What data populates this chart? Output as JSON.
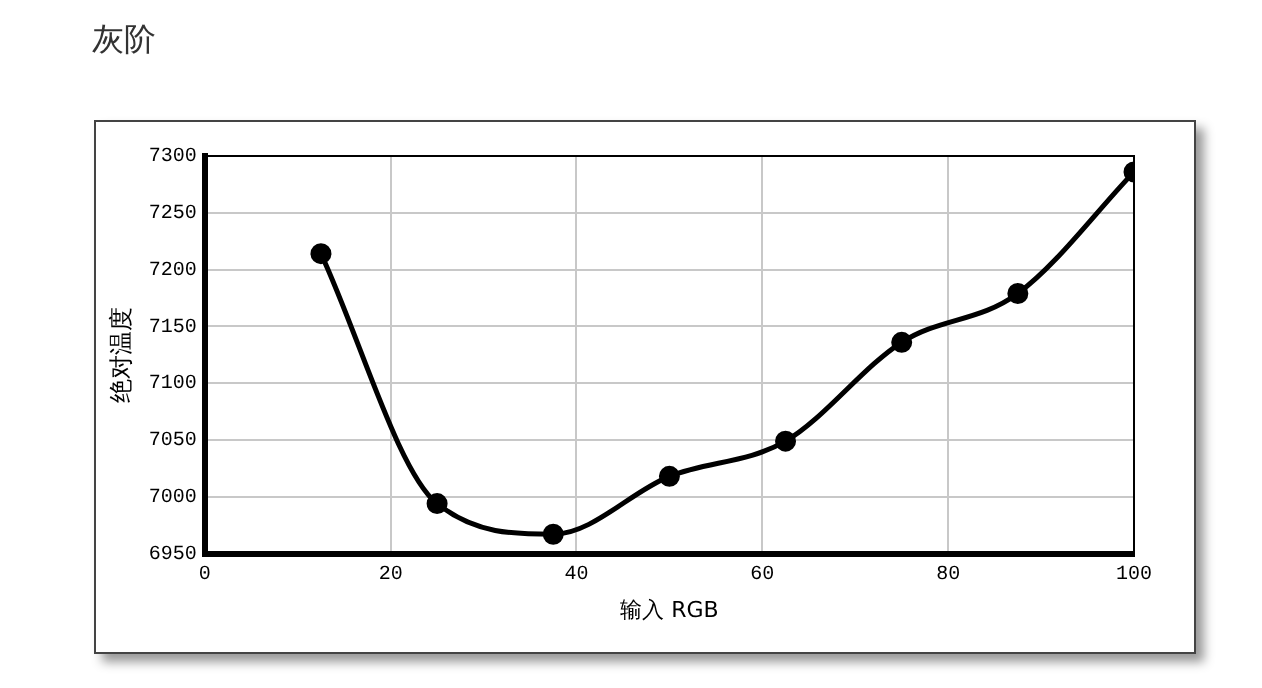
{
  "chart_data": {
    "type": "line",
    "title": "灰阶",
    "xlabel": "输入 RGB",
    "ylabel": "绝对温度",
    "x": [
      12.5,
      25,
      37.5,
      50,
      62.5,
      75,
      87.5,
      100
    ],
    "series": [
      {
        "color": "#000000",
        "values": [
          7214,
          6994,
          6967,
          7018,
          7049,
          7136,
          7179,
          7286
        ]
      }
    ],
    "xlim": [
      0,
      100
    ],
    "xticks": [
      0,
      20,
      40,
      60,
      80,
      100
    ],
    "ylim": [
      6950,
      7300
    ],
    "yticks": [
      6950,
      7000,
      7050,
      7100,
      7150,
      7200,
      7250,
      7300
    ],
    "grid": true,
    "marker": "circle",
    "line_style": "solid",
    "legend": false
  }
}
